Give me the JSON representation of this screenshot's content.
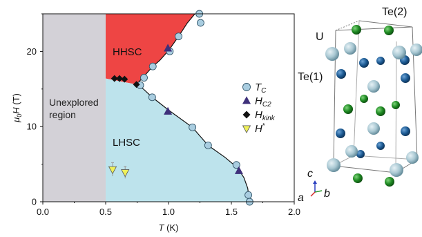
{
  "chart_data": {
    "type": "scatter",
    "xlabel": "T (K)",
    "ylabel": "μ0H (T)",
    "xlim": [
      0.0,
      2.0
    ],
    "ylim": [
      0,
      25
    ],
    "xticks": [
      0.0,
      0.5,
      1.0,
      1.5,
      2.0
    ],
    "xtick_labels": [
      "0.0",
      "0.5",
      "1.0",
      "1.5",
      "2.0"
    ],
    "yticks": [
      0,
      10,
      20
    ],
    "ytick_labels": [
      "0",
      "10",
      "20"
    ],
    "grid": false,
    "legend_position": "right",
    "regions": [
      {
        "label": "Unexplored region",
        "color": "#d3d1d7"
      },
      {
        "label": "HHSC",
        "color": "#ee4544"
      },
      {
        "label": "LHSC",
        "color": "#bde3ec"
      }
    ],
    "series": [
      {
        "name": "T_C",
        "label_main": "T",
        "label_sub": "C",
        "marker": "circle",
        "color": "#a9cde0",
        "points": [
          [
            1.245,
            25.0
          ],
          [
            1.255,
            23.8
          ],
          [
            1.08,
            22.0
          ],
          [
            1.01,
            20.0
          ],
          [
            0.875,
            18.0
          ],
          [
            0.805,
            16.5
          ],
          [
            0.775,
            15.5
          ],
          [
            0.87,
            13.9
          ],
          [
            1.19,
            9.9
          ],
          [
            1.315,
            7.5
          ],
          [
            1.54,
            4.9
          ],
          [
            1.635,
            0.9
          ],
          [
            1.645,
            0.0
          ]
        ]
      },
      {
        "name": "H_C2",
        "label_main": "H",
        "label_sub": "C2",
        "marker": "triangle-up",
        "color": "#3e307a",
        "points": [
          [
            0.995,
            20.4
          ],
          [
            0.995,
            12.0
          ],
          [
            1.56,
            4.1
          ]
        ]
      },
      {
        "name": "H_kink",
        "label_main": "H",
        "label_sub": "kink",
        "marker": "diamond",
        "color": "#111111",
        "points": [
          [
            0.57,
            16.4
          ],
          [
            0.61,
            16.4
          ],
          [
            0.65,
            16.3
          ],
          [
            0.745,
            15.6
          ]
        ]
      },
      {
        "name": "H*",
        "label_main": "H",
        "label_sup": "*",
        "marker": "triangle-down",
        "color": "#eff05a",
        "points": [
          [
            0.555,
            4.3
          ],
          [
            0.655,
            3.9
          ]
        ],
        "yerr": [
          0.9,
          0.8
        ]
      }
    ],
    "boundary_line": [
      [
        1.21,
        25.0
      ],
      [
        1.15,
        23.8
      ],
      [
        1.08,
        22.0
      ],
      [
        1.0,
        20.1
      ],
      [
        0.93,
        18.8
      ],
      [
        0.875,
        18.0
      ],
      [
        0.8,
        16.6
      ],
      [
        0.745,
        15.6
      ],
      [
        0.8,
        15.0
      ],
      [
        0.87,
        13.9
      ],
      [
        1.0,
        12.2
      ],
      [
        1.19,
        9.9
      ],
      [
        1.315,
        7.5
      ],
      [
        1.45,
        5.9
      ],
      [
        1.55,
        4.5
      ],
      [
        1.6,
        3.2
      ],
      [
        1.63,
        1.8
      ],
      [
        1.645,
        0.0
      ]
    ]
  },
  "crystal": {
    "labels": {
      "u": "U",
      "te1": "Te(1)",
      "te2": "Te(2)"
    },
    "axes": {
      "c": "c",
      "a": "a",
      "b": "b"
    },
    "colors": {
      "u": "#a9c8d3",
      "te1": "#1d5b94",
      "te2": "#1e8a22"
    }
  }
}
